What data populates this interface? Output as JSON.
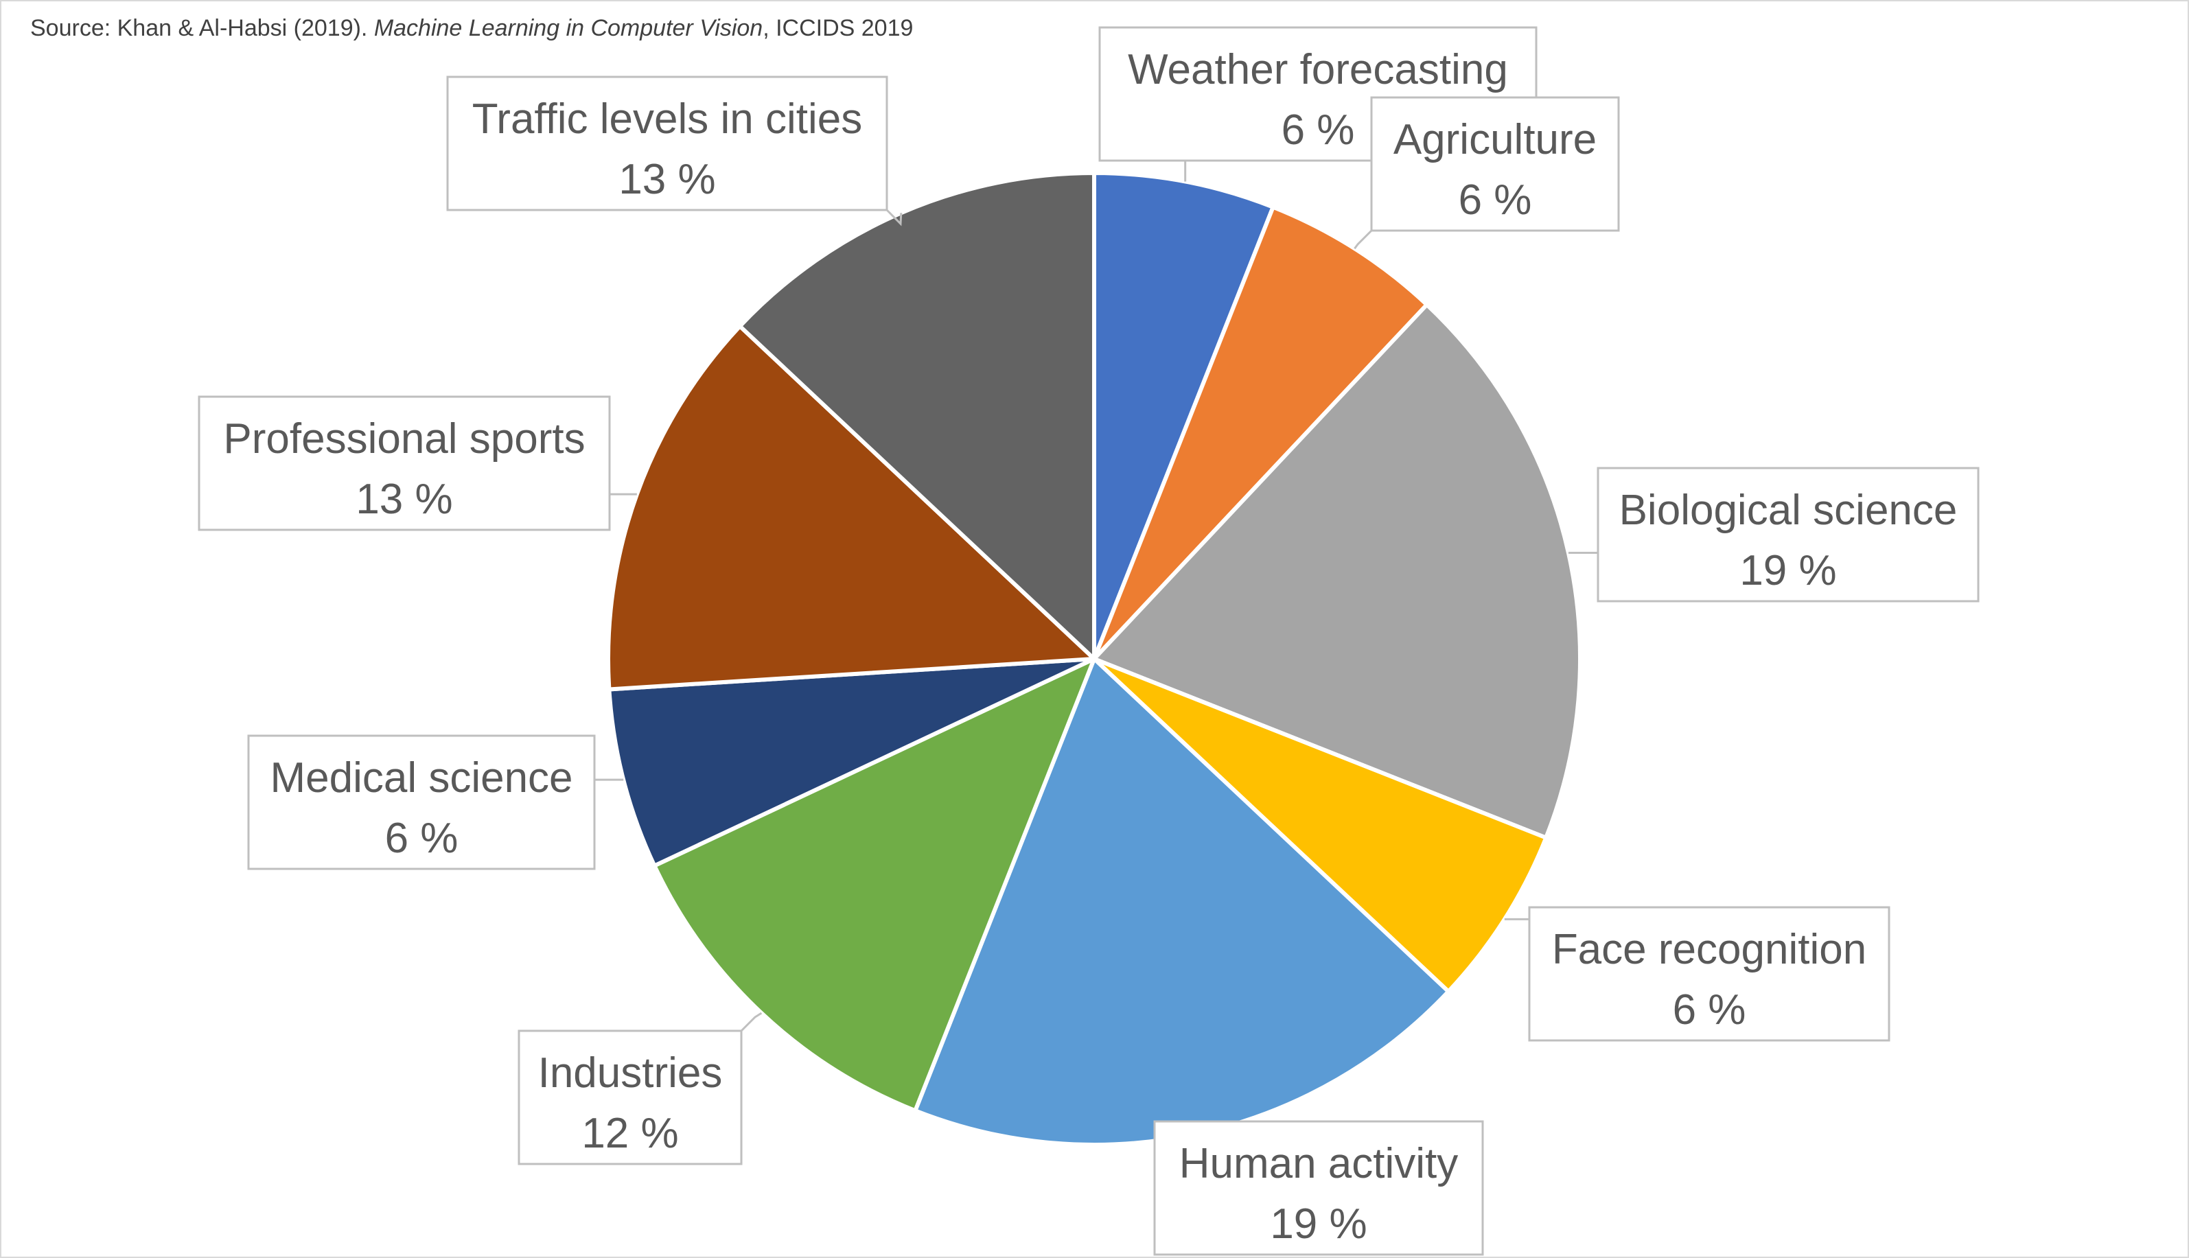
{
  "source": {
    "prefix": "Source: Khan & Al-Habsi (2019). ",
    "work": "Machine Learning in Computer Vision",
    "suffix": ", ICCIDS 2019"
  },
  "chart_data": {
    "type": "pie",
    "title": "",
    "start_angle_deg": 0,
    "direction": "clockwise",
    "slices": [
      {
        "label": "Weather forecasting",
        "value": 6,
        "value_label": "6 %",
        "color": "#4472C4"
      },
      {
        "label": "Agriculture",
        "value": 6,
        "value_label": "6 %",
        "color": "#ED7D31"
      },
      {
        "label": "Biological science",
        "value": 19,
        "value_label": "19 %",
        "color": "#A5A5A5"
      },
      {
        "label": "Face recognition",
        "value": 6,
        "value_label": "6 %",
        "color": "#FFC000"
      },
      {
        "label": "Human activity",
        "value": 19,
        "value_label": "19 %",
        "color": "#5B9BD5"
      },
      {
        "label": "Industries",
        "value": 12,
        "value_label": "12 %",
        "color": "#70AD47"
      },
      {
        "label": "Medical science",
        "value": 6,
        "value_label": "6 %",
        "color": "#264478"
      },
      {
        "label": "Professional sports",
        "value": 13,
        "value_label": "13 %",
        "color": "#9E480E"
      },
      {
        "label": "Traffic levels in cities",
        "value": 13,
        "value_label": "13 %",
        "color": "#636363"
      }
    ],
    "legend": "none",
    "data_labels": "outside-callout"
  }
}
